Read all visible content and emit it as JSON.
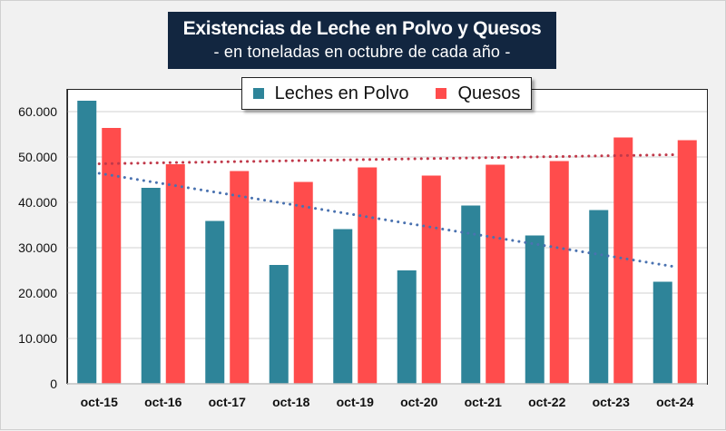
{
  "header": {
    "title": "Existencias de Leche en Polvo y Quesos",
    "subtitle": "- en toneladas en octubre de cada año -"
  },
  "colors": {
    "title_bg": "#122640",
    "leche": "#2e8499",
    "quesos": "#ff4c4c",
    "trend_leche": "#4a72b0",
    "trend_quesos": "#c0394a",
    "grid": "#d9d9d9"
  },
  "chart_data": {
    "type": "bar",
    "title": "Existencias de Leche en Polvo y Quesos",
    "subtitle": "- en toneladas en octubre de cada año -",
    "xlabel": "",
    "ylabel": "",
    "categories": [
      "oct-15",
      "oct-16",
      "oct-17",
      "oct-18",
      "oct-19",
      "oct-20",
      "oct-21",
      "oct-22",
      "oct-23",
      "oct-24"
    ],
    "series": [
      {
        "name": "Leches en Polvo",
        "values": [
          62400,
          43200,
          35900,
          26200,
          34100,
          25000,
          39300,
          32700,
          38300,
          22500
        ]
      },
      {
        "name": "Quesos",
        "values": [
          56400,
          48400,
          46900,
          44500,
          47700,
          45900,
          48300,
          49100,
          54300,
          53700
        ]
      }
    ],
    "trendlines": [
      {
        "series": "Leches en Polvo",
        "type": "linear",
        "style": "dotted",
        "start": 46400,
        "end": 25800
      },
      {
        "series": "Quesos",
        "type": "linear",
        "style": "dotted",
        "start": 48500,
        "end": 50500
      }
    ],
    "ylim": [
      0,
      64000
    ],
    "yticks": [
      0,
      10000,
      20000,
      30000,
      40000,
      50000,
      60000
    ],
    "ytick_labels": [
      "0",
      "10.000",
      "20.000",
      "30.000",
      "40.000",
      "50.000",
      "60.000"
    ],
    "grid": true,
    "legend": {
      "position": "top-center",
      "entries": [
        "Leches en Polvo",
        "Quesos"
      ]
    }
  }
}
